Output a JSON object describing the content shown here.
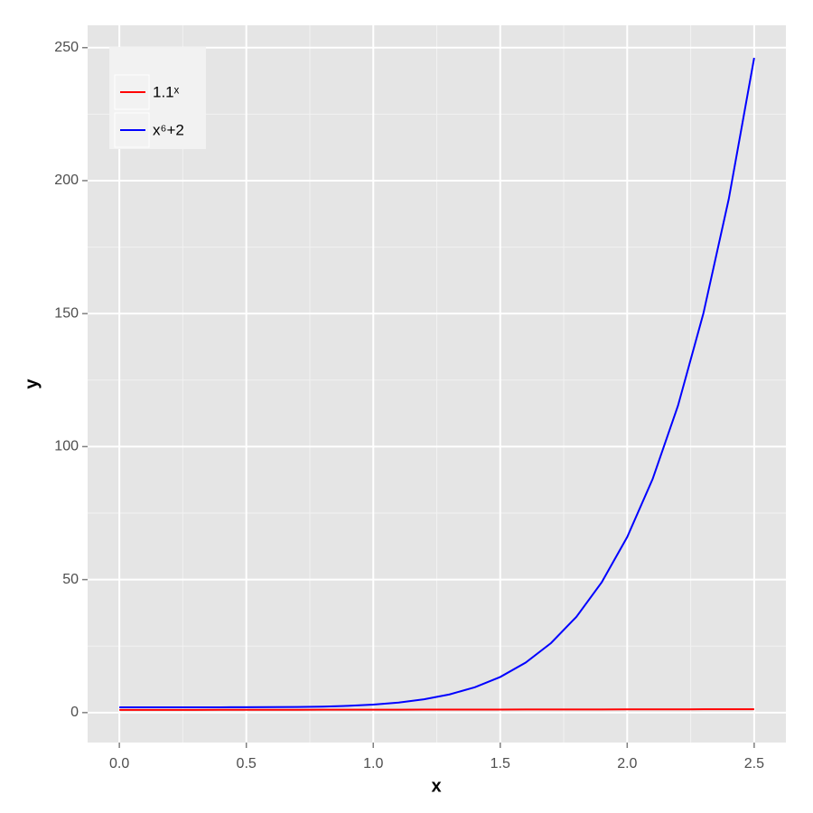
{
  "chart_data": {
    "type": "line",
    "x_label": "x",
    "y_label": "y",
    "x": [
      0,
      0.1,
      0.2,
      0.3,
      0.4,
      0.5,
      0.6,
      0.7,
      0.8,
      0.9,
      1.0,
      1.1,
      1.2,
      1.3,
      1.4,
      1.5,
      1.6,
      1.7,
      1.8,
      1.9,
      2.0,
      2.1,
      2.2,
      2.3,
      2.4,
      2.5
    ],
    "series": [
      {
        "name": "1.1ˣ",
        "color": "#ff0000",
        "values": [
          1,
          1.0096,
          1.0192,
          1.029,
          1.0389,
          1.0488,
          1.0589,
          1.069,
          1.0792,
          1.0897,
          1.1,
          1.1105,
          1.1211,
          1.1319,
          1.1428,
          1.1537,
          1.1647,
          1.1759,
          1.1872,
          1.1985,
          1.21,
          1.2216,
          1.2333,
          1.2451,
          1.257,
          1.269
        ]
      },
      {
        "name": "x⁶+2",
        "color": "#0000ff",
        "values": [
          2,
          2,
          2,
          2,
          2,
          2.02,
          2.05,
          2.12,
          2.26,
          2.53,
          3,
          3.77,
          4.99,
          6.83,
          9.53,
          13.39,
          18.78,
          26.14,
          36.01,
          49.05,
          66,
          87.77,
          115.38,
          150.04,
          193.1,
          246.14
        ]
      }
    ],
    "xlim": [
      -0.125,
      2.625
    ],
    "ylim": [
      -11.26,
      258.4
    ],
    "xticks": [
      {
        "value": 0,
        "label": "0.0"
      },
      0.5,
      {
        "value": 1,
        "label": "1.0"
      },
      1.5,
      {
        "value": 2,
        "label": "2.0"
      },
      2.5
    ],
    "yticks": [
      0,
      50,
      100,
      150,
      200,
      250
    ],
    "x_minor_grid": [
      0.25,
      0.75,
      1.25,
      1.75,
      2.25
    ],
    "y_minor_grid": [
      25,
      75,
      125,
      175,
      225
    ],
    "grid": true,
    "legend": "top-left"
  }
}
